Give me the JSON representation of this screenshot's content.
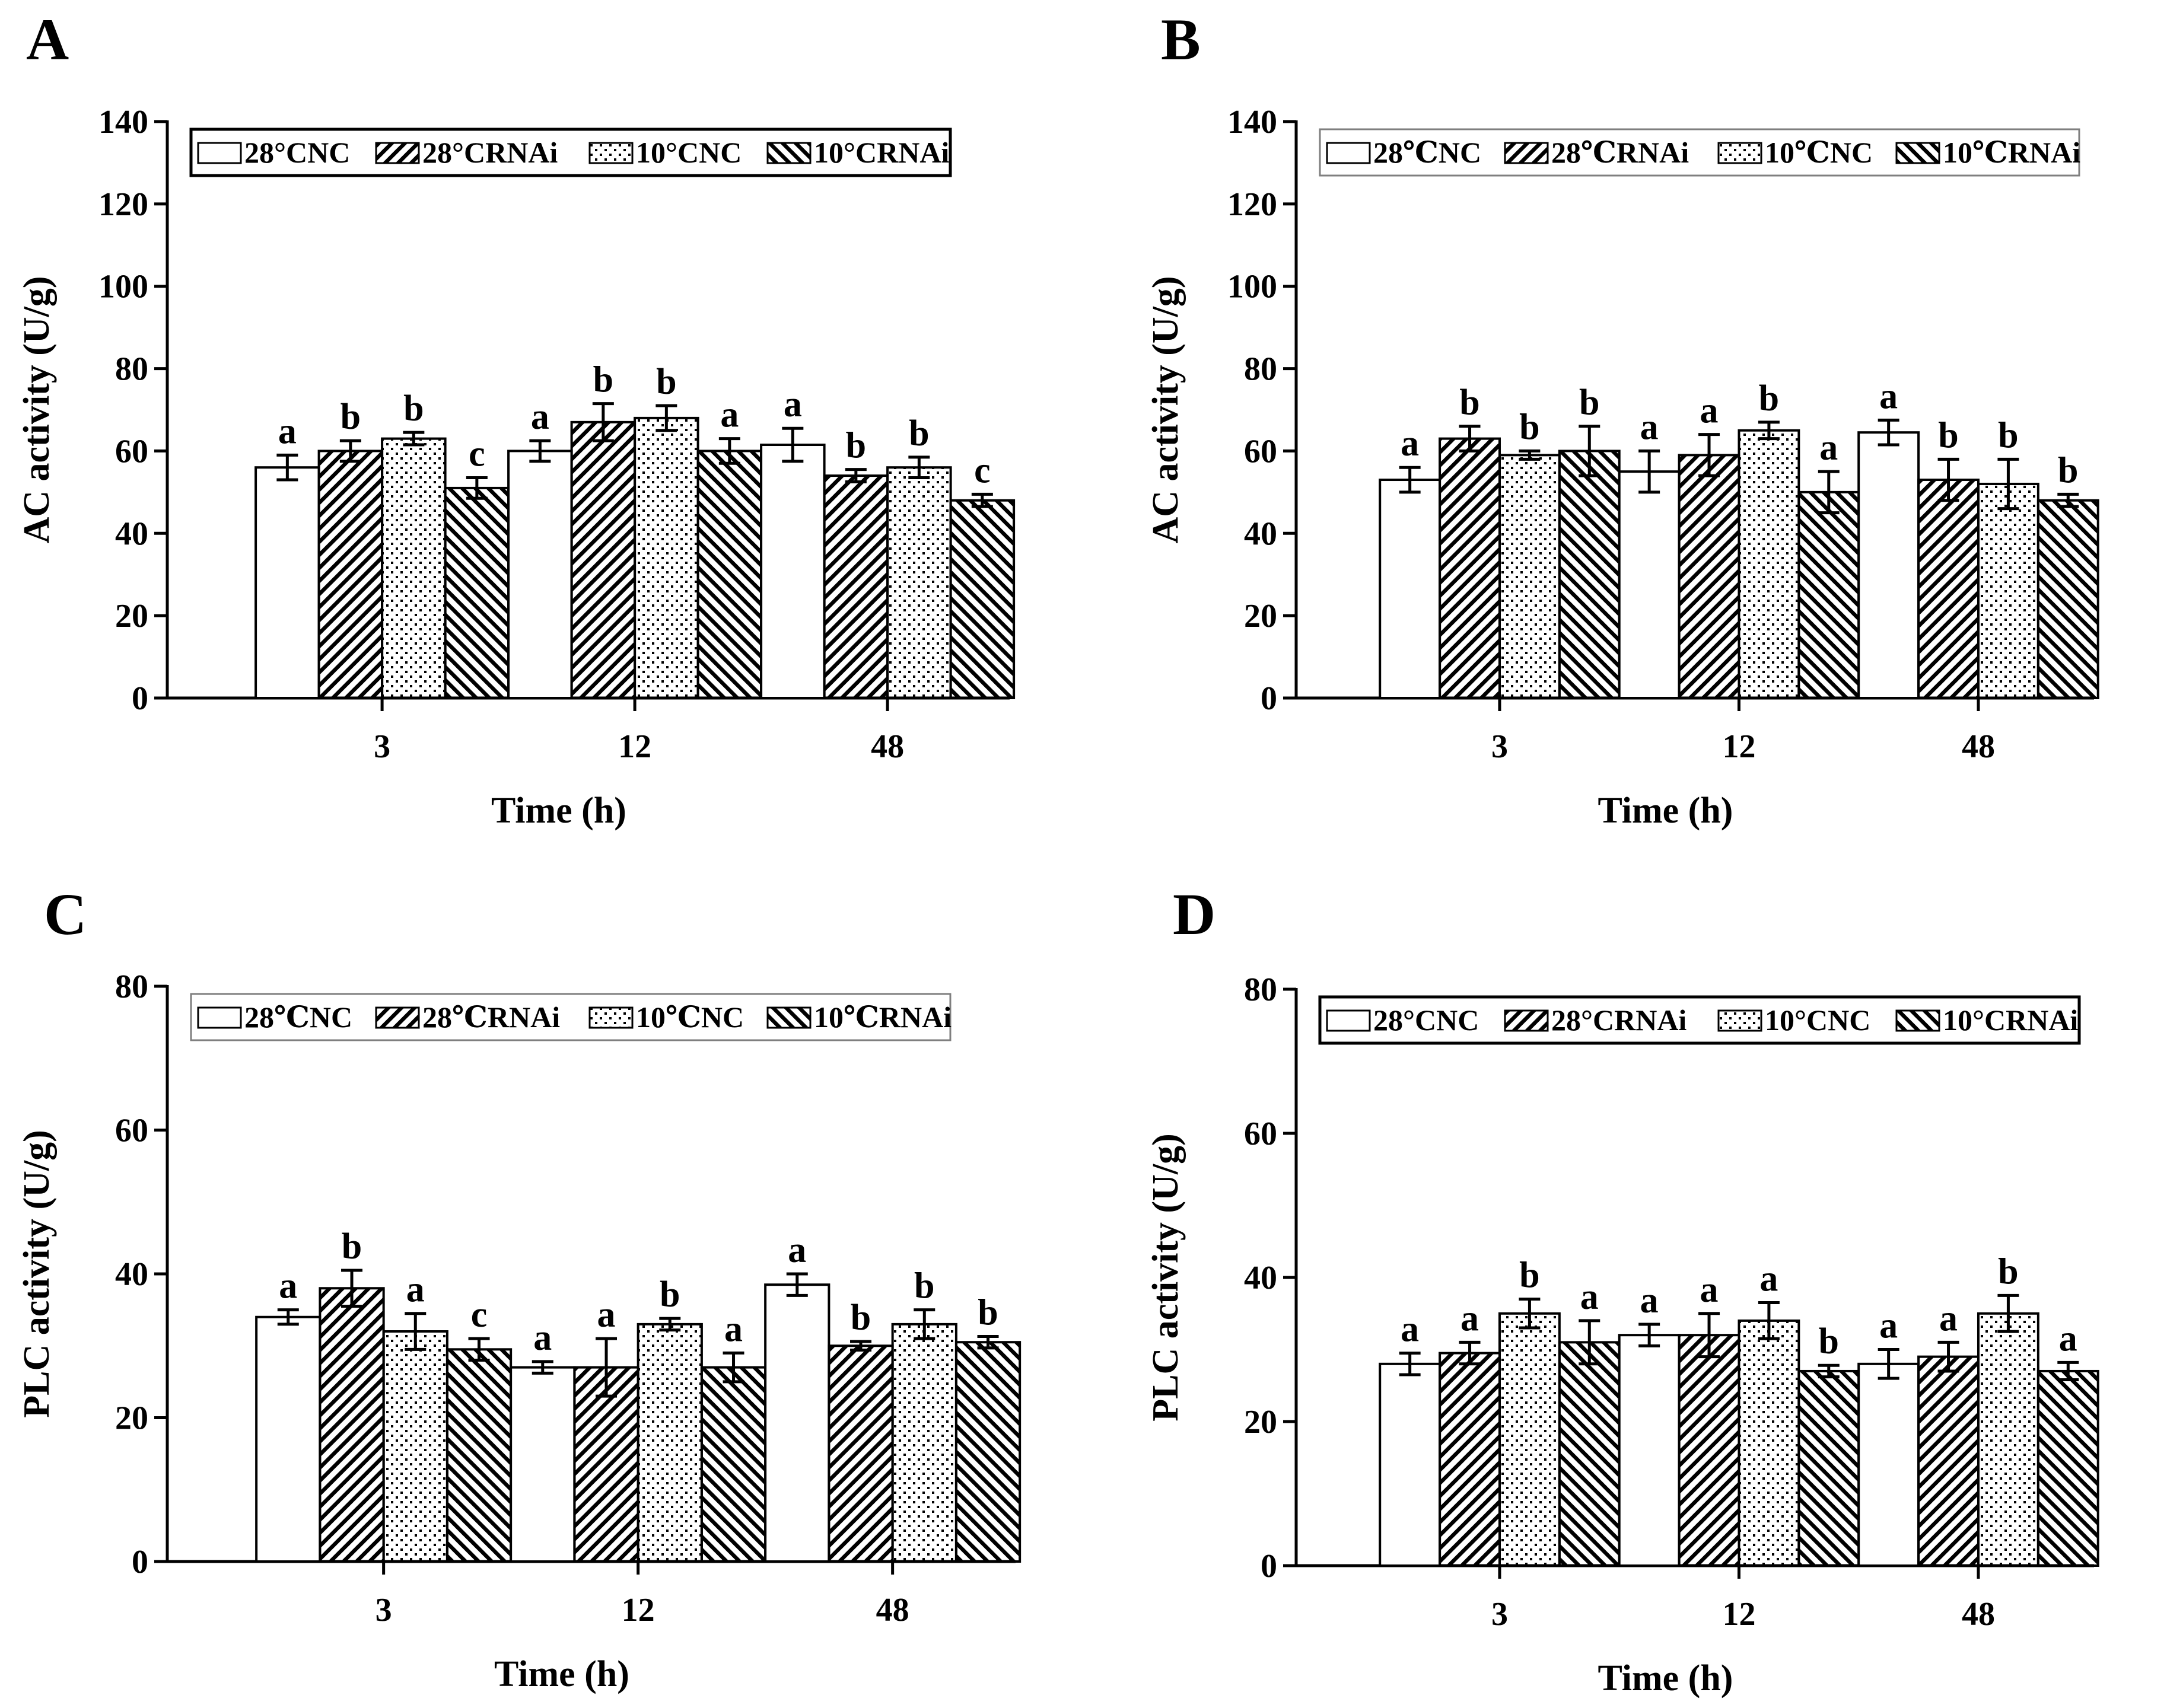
{
  "figure": {
    "panel_letters": [
      "A",
      "B",
      "C",
      "D"
    ]
  },
  "colors": {
    "ink": "#000000",
    "background": "#ffffff",
    "legend_border_light": "#7f7f7f"
  },
  "legend_series": [
    {
      "key": "28NC",
      "pattern": "empty"
    },
    {
      "key": "28RNAi",
      "pattern": "diag-right"
    },
    {
      "key": "10NC",
      "pattern": "dots"
    },
    {
      "key": "10RNAi",
      "pattern": "diag-left"
    }
  ],
  "chart_data": [
    {
      "panel": "A",
      "type": "bar",
      "ylabel": "AC activity (U/g)",
      "xlabel": "Time (h)",
      "categories": [
        "3",
        "12",
        "48"
      ],
      "ylim": [
        0,
        140
      ],
      "yticks": [
        0,
        20,
        40,
        60,
        80,
        100,
        120,
        140
      ],
      "ytick_labels": [
        "0",
        "20",
        "40",
        "60",
        "80",
        "100",
        "120",
        "140"
      ],
      "legend": [
        "28°CNC",
        "28°CRNAi",
        "10°CNC",
        "10°CRNAi"
      ],
      "legend_style": "solid",
      "series": [
        {
          "name": "28°CNC",
          "values": [
            56,
            60,
            61.5
          ],
          "errors": [
            3,
            2.5,
            4
          ],
          "letters": [
            "a",
            "a",
            "a"
          ]
        },
        {
          "name": "28°CRNAi",
          "values": [
            60,
            67,
            54
          ],
          "errors": [
            2.5,
            4.5,
            1.5
          ],
          "letters": [
            "b",
            "b",
            "b"
          ]
        },
        {
          "name": "10°CNC",
          "values": [
            63,
            68,
            56
          ],
          "errors": [
            1.5,
            3,
            2.5
          ],
          "letters": [
            "b",
            "b",
            "b"
          ]
        },
        {
          "name": "10°CRNAi",
          "values": [
            51,
            60,
            48
          ],
          "errors": [
            2.5,
            3,
            1.5
          ],
          "letters": [
            "c",
            "a",
            "c"
          ]
        }
      ]
    },
    {
      "panel": "B",
      "type": "bar",
      "ylabel": "AC activity (U/g)",
      "xlabel": "Time (h)",
      "categories": [
        "3",
        "12",
        "48"
      ],
      "ylim": [
        0,
        140
      ],
      "yticks": [
        0,
        20,
        40,
        60,
        80,
        100,
        120,
        140
      ],
      "ytick_labels": [
        "0",
        "20",
        "40",
        "60",
        "80",
        "100",
        "120",
        "140"
      ],
      "legend": [
        "28℃NC",
        "28℃RNAi",
        "10℃NC",
        "10℃RNAi"
      ],
      "legend_style": "light",
      "series": [
        {
          "name": "28℃NC",
          "values": [
            53,
            55,
            64.5
          ],
          "errors": [
            3,
            5,
            3
          ],
          "letters": [
            "a",
            "a",
            "a"
          ]
        },
        {
          "name": "28℃RNAi",
          "values": [
            63,
            59,
            53
          ],
          "errors": [
            3,
            5,
            5
          ],
          "letters": [
            "b",
            "a",
            "b"
          ]
        },
        {
          "name": "10℃NC",
          "values": [
            59,
            65,
            52
          ],
          "errors": [
            1,
            2,
            6
          ],
          "letters": [
            "b",
            "b",
            "b"
          ]
        },
        {
          "name": "10℃RNAi",
          "values": [
            60,
            50,
            48
          ],
          "errors": [
            6,
            5,
            1.5
          ],
          "letters": [
            "b",
            "a",
            "b"
          ]
        }
      ]
    },
    {
      "panel": "C",
      "type": "bar",
      "ylabel": "PLC activity (U/g)",
      "xlabel": "Time (h)",
      "categories": [
        "3",
        "12",
        "48"
      ],
      "ylim": [
        0,
        80
      ],
      "yticks": [
        0,
        20,
        40,
        60,
        80
      ],
      "ytick_labels": [
        "0",
        "20",
        "40",
        "60",
        "80"
      ],
      "legend": [
        "28℃NC",
        "28℃RNAi",
        "10℃NC",
        "10℃RNAi"
      ],
      "legend_style": "light",
      "series": [
        {
          "name": "28℃NC",
          "values": [
            34,
            27,
            38.5
          ],
          "errors": [
            1,
            0.8,
            1.5
          ],
          "letters": [
            "a",
            "a",
            "a"
          ]
        },
        {
          "name": "28℃RNAi",
          "values": [
            38,
            27,
            30
          ],
          "errors": [
            2.5,
            4,
            0.6
          ],
          "letters": [
            "b",
            "a",
            "b"
          ]
        },
        {
          "name": "10℃NC",
          "values": [
            32,
            33,
            33
          ],
          "errors": [
            2.5,
            0.8,
            2
          ],
          "letters": [
            "a",
            "b",
            "b"
          ]
        },
        {
          "name": "10℃RNAi",
          "values": [
            29.5,
            27,
            30.5
          ],
          "errors": [
            1.5,
            2,
            0.8
          ],
          "letters": [
            "c",
            "a",
            "b"
          ]
        }
      ]
    },
    {
      "panel": "D",
      "type": "bar",
      "ylabel": "PLC activity (U/g)",
      "xlabel": "Time (h)",
      "categories": [
        "3",
        "12",
        "48"
      ],
      "ylim": [
        0,
        80
      ],
      "yticks": [
        0,
        20,
        40,
        60,
        80
      ],
      "ytick_labels": [
        "0",
        "20",
        "40",
        "60",
        "80"
      ],
      "legend": [
        "28°CNC",
        "28°CRNAi",
        "10°CNC",
        "10°CRNAi"
      ],
      "legend_style": "solid",
      "series": [
        {
          "name": "28°CNC",
          "values": [
            28,
            32,
            28
          ],
          "errors": [
            1.5,
            1.5,
            2
          ],
          "letters": [
            "a",
            "a",
            "a"
          ]
        },
        {
          "name": "28°CRNAi",
          "values": [
            29.5,
            32,
            29
          ],
          "errors": [
            1.5,
            3,
            2
          ],
          "letters": [
            "a",
            "a",
            "a"
          ]
        },
        {
          "name": "10°CNC",
          "values": [
            35,
            34,
            35
          ],
          "errors": [
            2,
            2.5,
            2.5
          ],
          "letters": [
            "b",
            "a",
            "b"
          ]
        },
        {
          "name": "10°CRNAi",
          "values": [
            31,
            27,
            27
          ],
          "errors": [
            3,
            0.8,
            1.2
          ],
          "letters": [
            "a",
            "b",
            "a"
          ]
        }
      ]
    }
  ]
}
